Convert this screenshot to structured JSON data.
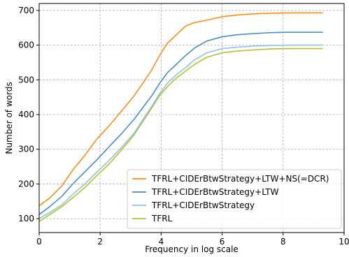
{
  "chart_data": {
    "type": "line",
    "title": "",
    "xlabel": "Frequency in log scale",
    "ylabel": "Number of words",
    "xlim": [
      0,
      10
    ],
    "ylim": [
      60,
      720
    ],
    "xticks": [
      0,
      2,
      4,
      6,
      8,
      10
    ],
    "xtick_labels": [
      "0",
      "2",
      "4",
      "6",
      "8",
      "10"
    ],
    "yticks": [
      100,
      200,
      300,
      400,
      500,
      600,
      700
    ],
    "ytick_labels": [
      "100",
      "200",
      "300",
      "400",
      "500",
      "600",
      "700"
    ],
    "grid": true,
    "grid_style": "dashed",
    "legend_position": "lower-right",
    "series": [
      {
        "name": "TFRL+CIDErBtwStrategy+LTW+NS(=DCR)",
        "color": "#ff8c1a",
        "points": [
          [
            0,
            137
          ],
          [
            0.35,
            160
          ],
          [
            0.75,
            195
          ],
          [
            1.1,
            240
          ],
          [
            1.5,
            283
          ],
          [
            1.9,
            330
          ],
          [
            2.3,
            368
          ],
          [
            2.7,
            410
          ],
          [
            3.1,
            453
          ],
          [
            3.4,
            490
          ],
          [
            3.7,
            530
          ],
          [
            3.95,
            570
          ],
          [
            4.2,
            605
          ],
          [
            4.5,
            630
          ],
          [
            4.8,
            655
          ],
          [
            5.1,
            665
          ],
          [
            5.5,
            672
          ],
          [
            6.0,
            682
          ],
          [
            6.5,
            687
          ],
          [
            7.0,
            690
          ],
          [
            7.6,
            692
          ],
          [
            8.2,
            693
          ],
          [
            9.3,
            693
          ]
        ]
      },
      {
        "name": "TFRL+CIDErBtwStrategy+LTW",
        "color": "#4a8ec2",
        "points": [
          [
            0,
            112
          ],
          [
            0.35,
            135
          ],
          [
            0.75,
            165
          ],
          [
            1.1,
            200
          ],
          [
            1.5,
            235
          ],
          [
            1.9,
            270
          ],
          [
            2.3,
            308
          ],
          [
            2.7,
            345
          ],
          [
            3.1,
            385
          ],
          [
            3.4,
            420
          ],
          [
            3.7,
            455
          ],
          [
            3.95,
            490
          ],
          [
            4.2,
            520
          ],
          [
            4.5,
            545
          ],
          [
            4.8,
            570
          ],
          [
            5.1,
            592
          ],
          [
            5.5,
            612
          ],
          [
            6.0,
            624
          ],
          [
            6.5,
            630
          ],
          [
            7.0,
            633
          ],
          [
            7.6,
            636
          ],
          [
            8.2,
            637
          ],
          [
            9.3,
            637
          ]
        ]
      },
      {
        "name": "TFRL+CIDErBtwStrategy",
        "color": "#8ec4e8",
        "points": [
          [
            0,
            100
          ],
          [
            0.35,
            118
          ],
          [
            0.75,
            140
          ],
          [
            1.1,
            170
          ],
          [
            1.5,
            200
          ],
          [
            1.9,
            235
          ],
          [
            2.3,
            268
          ],
          [
            2.7,
            305
          ],
          [
            3.1,
            345
          ],
          [
            3.4,
            385
          ],
          [
            3.7,
            425
          ],
          [
            3.95,
            460
          ],
          [
            4.2,
            490
          ],
          [
            4.5,
            515
          ],
          [
            4.8,
            535
          ],
          [
            5.1,
            558
          ],
          [
            5.5,
            578
          ],
          [
            6.0,
            590
          ],
          [
            6.5,
            594
          ],
          [
            7.0,
            597
          ],
          [
            7.6,
            599
          ],
          [
            8.2,
            600
          ],
          [
            9.3,
            600
          ]
        ]
      },
      {
        "name": "TFRL",
        "color": "#b5c22a",
        "points": [
          [
            0,
            92
          ],
          [
            0.35,
            112
          ],
          [
            0.75,
            135
          ],
          [
            1.1,
            160
          ],
          [
            1.5,
            190
          ],
          [
            1.9,
            225
          ],
          [
            2.3,
            258
          ],
          [
            2.7,
            298
          ],
          [
            3.1,
            340
          ],
          [
            3.4,
            380
          ],
          [
            3.7,
            420
          ],
          [
            3.95,
            455
          ],
          [
            4.2,
            480
          ],
          [
            4.5,
            505
          ],
          [
            4.8,
            525
          ],
          [
            5.1,
            545
          ],
          [
            5.5,
            565
          ],
          [
            6.0,
            578
          ],
          [
            6.5,
            583
          ],
          [
            7.0,
            586
          ],
          [
            7.6,
            589
          ],
          [
            8.2,
            590
          ],
          [
            9.3,
            590
          ]
        ]
      }
    ]
  }
}
